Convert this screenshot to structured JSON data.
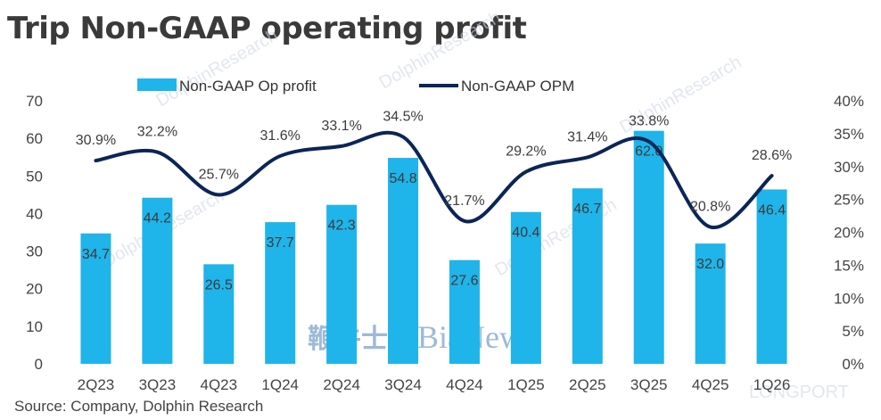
{
  "title": "Trip Non-GAAP operating profit",
  "source": "Source: Company, Dolphin Research",
  "watermarks": {
    "dolphin": "DolphinResearch",
    "bianews_cn": "鞭牛士",
    "bianews_en": "BiaNews",
    "corner": "LONGPORT"
  },
  "colors": {
    "bar": "#1fb4ea",
    "line": "#0b2557",
    "text": "#444444"
  },
  "chart_data": {
    "type": "bar",
    "categories": [
      "2Q23",
      "3Q23",
      "4Q23",
      "1Q24",
      "2Q24",
      "3Q24",
      "4Q24",
      "1Q25",
      "2Q25",
      "3Q25",
      "4Q25",
      "1Q26"
    ],
    "series": [
      {
        "name": "Non-GAAP Op profit",
        "type": "bar",
        "axis": "left",
        "values": [
          34.7,
          44.2,
          26.5,
          37.7,
          42.3,
          54.8,
          27.6,
          40.4,
          46.7,
          62.0,
          32.0,
          46.4
        ],
        "labels": [
          "34.7",
          "44.2",
          "26.5",
          "37.7",
          "42.3",
          "54.8",
          "27.6",
          "40.4",
          "46.7",
          "62.0",
          "32.0",
          "46.4"
        ]
      },
      {
        "name": "Non-GAAP OPM",
        "type": "line",
        "axis": "right",
        "values": [
          30.9,
          32.2,
          25.7,
          31.6,
          33.1,
          34.5,
          21.7,
          29.2,
          31.4,
          33.8,
          20.8,
          28.6
        ],
        "labels": [
          "30.9%",
          "32.2%",
          "25.7%",
          "31.6%",
          "33.1%",
          "34.5%",
          "21.7%",
          "29.2%",
          "31.4%",
          "33.8%",
          "20.8%",
          "28.6%"
        ]
      }
    ],
    "y_left": {
      "lim": [
        0,
        70
      ],
      "ticks": [
        "0",
        "10",
        "20",
        "30",
        "40",
        "50",
        "60",
        "70"
      ]
    },
    "y_right": {
      "lim": [
        0,
        40
      ],
      "ticks": [
        "0%",
        "5%",
        "10%",
        "15%",
        "20%",
        "25%",
        "30%",
        "35%",
        "40%"
      ]
    },
    "grid": false,
    "legend": "top-center"
  }
}
